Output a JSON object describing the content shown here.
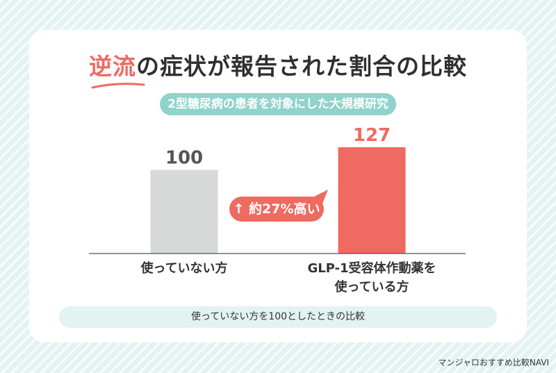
{
  "title": {
    "highlight": "逆流",
    "rest": "の症状が報告された割合の比較"
  },
  "subtitle": "2型糖尿病の患者を対象にした大規模研究",
  "badge": {
    "arrow": "↑",
    "text": "約27%高い"
  },
  "footnote": "使っていない方を100としたときの比較",
  "watermark": "マンジャロおすすめ比較NAVI",
  "colors": {
    "accent": "#ef6a60",
    "teal": "#8fd3ca",
    "gray_bar": "#d7d9d9"
  },
  "chart_data": {
    "type": "bar",
    "title": "逆流の症状が報告された割合の比較",
    "subtitle": "2型糖尿病の患者を対象にした大規模研究",
    "categories": [
      "使っていない方",
      "GLP-1受容体作動薬を使っている方"
    ],
    "category_lines": [
      [
        "使っていない方"
      ],
      [
        "GLP-1受容体作動薬を",
        "使っている方"
      ]
    ],
    "values": [
      100,
      127
    ],
    "labels": [
      "100",
      "127"
    ],
    "bar_colors": [
      "#d7d9d9",
      "#ef6a60"
    ],
    "label_colors": [
      "#555555",
      "#ef6a60"
    ],
    "annotation": "↑約27%高い",
    "ylim": [
      0,
      127
    ],
    "grid": false,
    "legend": "none"
  }
}
